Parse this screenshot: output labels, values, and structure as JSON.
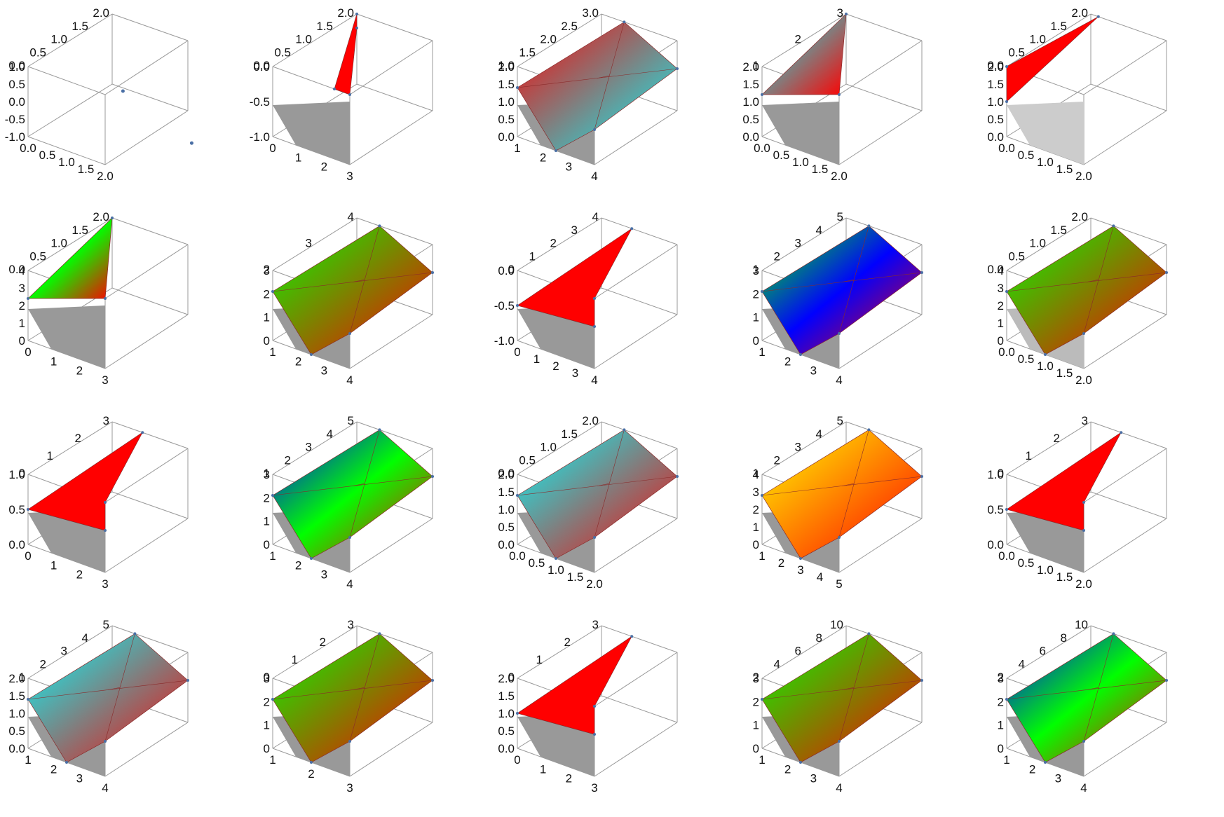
{
  "chart_data": [
    {
      "type": "surface3d",
      "grid": false,
      "z_ticks": [
        "2.0",
        "1.5",
        "1.0",
        "0.5",
        "0.0"
      ],
      "v_ticks": [
        "1.0",
        "0.5",
        "0.0",
        "-0.5",
        "-1.0"
      ],
      "x_ticks": [
        "0.0",
        "0.5",
        "1.0",
        "1.5",
        "2.0"
      ],
      "style": "points",
      "points": [
        [
          0.55,
          0.25
        ],
        [
          0.98,
          0.78
        ]
      ],
      "fill": null
    },
    {
      "type": "surface3d",
      "grid": false,
      "z_ticks": [
        "2.0",
        "1.5",
        "1.0",
        "0.5",
        "0.0"
      ],
      "v_ticks": [
        "0.0",
        "-0.5",
        "-1.0"
      ],
      "x_ticks": [
        "0",
        "1",
        "2",
        "3"
      ],
      "style": "blade",
      "fill": [
        "#ff0000"
      ],
      "shadow": "#999999"
    },
    {
      "type": "surface3d",
      "grid": false,
      "z_ticks": [
        "3.0",
        "2.5",
        "2.0",
        "1.5",
        "1.0"
      ],
      "v_ticks": [
        "2.0",
        "1.5",
        "1.0",
        "0.5",
        "0.0"
      ],
      "x_ticks": [
        "1",
        "2",
        "3",
        "4"
      ],
      "style": "surface",
      "fill": [
        "#ff0000",
        "#00ffff"
      ],
      "shadow": "#999999"
    },
    {
      "type": "surface3d",
      "grid": false,
      "z_ticks": [
        "3",
        "2",
        "1"
      ],
      "v_ticks": [
        "2.0",
        "1.5",
        "1.0",
        "0.5",
        "0.0"
      ],
      "x_ticks": [
        "0.0",
        "0.5",
        "1.0",
        "1.5",
        "2.0"
      ],
      "style": "triangle",
      "fill": [
        "#00ffff",
        "#ff0000"
      ],
      "shadow": "#999999"
    },
    {
      "type": "surface3d",
      "grid": false,
      "z_ticks": [
        "2.0",
        "1.5",
        "1.0",
        "0.5",
        "0.0"
      ],
      "v_ticks": [
        "2.0",
        "1.5",
        "1.0",
        "0.5",
        "0.0"
      ],
      "x_ticks": [
        "0.0",
        "0.5",
        "1.0",
        "1.5",
        "2.0"
      ],
      "style": "line",
      "fill": [
        "#ff0000"
      ],
      "shadow": "#cccccc"
    },
    {
      "type": "surface3d",
      "grid": false,
      "z_ticks": [
        "2.0",
        "1.5",
        "1.0",
        "0.5",
        "0.0"
      ],
      "v_ticks": [
        "4",
        "3",
        "2",
        "1",
        "0"
      ],
      "x_ticks": [
        "0",
        "1",
        "2",
        "3"
      ],
      "style": "triangle",
      "fill": [
        "#0000ff",
        "#00ff00",
        "#ff0000"
      ],
      "shadow": "#999999"
    },
    {
      "type": "surface3d",
      "grid": false,
      "z_ticks": [
        "4",
        "3",
        "2"
      ],
      "v_ticks": [
        "3",
        "2",
        "1",
        "0"
      ],
      "x_ticks": [
        "1",
        "2",
        "3",
        "4"
      ],
      "style": "surface",
      "fill": [
        "#00ff00",
        "#ff0000"
      ],
      "shadow": "#999999"
    },
    {
      "type": "surface3d",
      "grid": false,
      "z_ticks": [
        "4",
        "3",
        "2",
        "1",
        "0"
      ],
      "v_ticks": [
        "0.0",
        "-0.5",
        "-1.0"
      ],
      "x_ticks": [
        "0",
        "1",
        "2",
        "3",
        "4"
      ],
      "style": "flat",
      "fill": [
        "#ff0000"
      ],
      "shadow": "#999999"
    },
    {
      "type": "surface3d",
      "grid": false,
      "z_ticks": [
        "5",
        "4",
        "3",
        "2",
        "1"
      ],
      "v_ticks": [
        "3",
        "2",
        "1",
        "0"
      ],
      "x_ticks": [
        "1",
        "2",
        "3",
        "4"
      ],
      "style": "surface",
      "fill": [
        "#00ff00",
        "#0000ff",
        "#ff0000"
      ],
      "shadow": "#999999"
    },
    {
      "type": "surface3d",
      "grid": false,
      "z_ticks": [
        "2.0",
        "1.5",
        "1.0",
        "0.5",
        "0.0"
      ],
      "v_ticks": [
        "4",
        "3",
        "2",
        "1",
        "0"
      ],
      "x_ticks": [
        "0.0",
        "0.5",
        "1.0",
        "1.5",
        "2.0"
      ],
      "style": "surface",
      "fill": [
        "#00ff00",
        "#ff0000"
      ],
      "shadow": "#bbbbbb"
    },
    {
      "type": "surface3d",
      "grid": false,
      "z_ticks": [
        "3",
        "2",
        "1",
        "0"
      ],
      "v_ticks": [
        "1.0",
        "0.5",
        "0.0"
      ],
      "x_ticks": [
        "0",
        "1",
        "2",
        "3"
      ],
      "style": "flat",
      "fill": [
        "#ff0000"
      ],
      "shadow": "#999999"
    },
    {
      "type": "surface3d",
      "grid": false,
      "z_ticks": [
        "5",
        "4",
        "3",
        "2",
        "1"
      ],
      "v_ticks": [
        "3",
        "2",
        "1",
        "0"
      ],
      "x_ticks": [
        "1",
        "2",
        "3",
        "4"
      ],
      "style": "surface",
      "fill": [
        "#0000ff",
        "#00ff00",
        "#ff0000"
      ],
      "shadow": "#999999"
    },
    {
      "type": "surface3d",
      "grid": false,
      "z_ticks": [
        "2.0",
        "1.5",
        "1.0",
        "0.5",
        "0.0"
      ],
      "v_ticks": [
        "2.0",
        "1.5",
        "1.0",
        "0.5",
        "0.0"
      ],
      "x_ticks": [
        "0.0",
        "0.5",
        "1.0",
        "1.5",
        "2.0"
      ],
      "style": "surface",
      "fill": [
        "#00ffff",
        "#ff0000"
      ],
      "shadow": "#999999"
    },
    {
      "type": "surface3d",
      "grid": false,
      "z_ticks": [
        "5",
        "4",
        "3",
        "2",
        "1"
      ],
      "v_ticks": [
        "4",
        "3",
        "2",
        "1",
        "0"
      ],
      "x_ticks": [
        "1",
        "2",
        "3",
        "4",
        "5"
      ],
      "style": "surface",
      "fill": [
        "#ffff00",
        "#ff0000"
      ],
      "shadow": "#999999"
    },
    {
      "type": "surface3d",
      "grid": false,
      "z_ticks": [
        "3",
        "2",
        "1",
        "0"
      ],
      "v_ticks": [
        "1.0",
        "0.5",
        "0.0"
      ],
      "x_ticks": [
        "0.0",
        "0.5",
        "1.0",
        "1.5",
        "2.0"
      ],
      "style": "flat",
      "fill": [
        "#ff0000"
      ],
      "shadow": "#999999"
    },
    {
      "type": "surface3d",
      "grid": false,
      "z_ticks": [
        "5",
        "4",
        "3",
        "2",
        "1"
      ],
      "v_ticks": [
        "2.0",
        "1.5",
        "1.0",
        "0.5",
        "0.0"
      ],
      "x_ticks": [
        "1",
        "2",
        "3",
        "4"
      ],
      "style": "surface",
      "fill": [
        "#00ffff",
        "#ff0000"
      ],
      "shadow": "#999999"
    },
    {
      "type": "surface3d",
      "grid": false,
      "z_ticks": [
        "3",
        "2",
        "1",
        "0"
      ],
      "v_ticks": [
        "3",
        "2",
        "1",
        "0"
      ],
      "x_ticks": [
        "1",
        "2",
        "3"
      ],
      "style": "surface",
      "fill": [
        "#00ff00",
        "#ff0000"
      ],
      "shadow": "#999999"
    },
    {
      "type": "surface3d",
      "grid": false,
      "z_ticks": [
        "3",
        "2",
        "1",
        "0"
      ],
      "v_ticks": [
        "2.0",
        "1.5",
        "1.0",
        "0.5",
        "0.0"
      ],
      "x_ticks": [
        "0",
        "1",
        "2",
        "3"
      ],
      "style": "flat",
      "fill": [
        "#ff0000"
      ],
      "shadow": "#999999"
    },
    {
      "type": "surface3d",
      "grid": false,
      "z_ticks": [
        "10",
        "8",
        "6",
        "4",
        "2"
      ],
      "v_ticks": [
        "3",
        "2",
        "1",
        "0"
      ],
      "x_ticks": [
        "1",
        "2",
        "3",
        "4"
      ],
      "style": "surface",
      "fill": [
        "#00ff00",
        "#ff0000"
      ],
      "shadow": "#999999"
    },
    {
      "type": "surface3d",
      "grid": false,
      "z_ticks": [
        "10",
        "8",
        "6",
        "4",
        "2"
      ],
      "v_ticks": [
        "3",
        "2",
        "1",
        "0"
      ],
      "x_ticks": [
        "1",
        "2",
        "3",
        "4"
      ],
      "style": "surface",
      "fill": [
        "#0000ff",
        "#00ff00",
        "#ff0000"
      ],
      "shadow": "#999999"
    }
  ]
}
